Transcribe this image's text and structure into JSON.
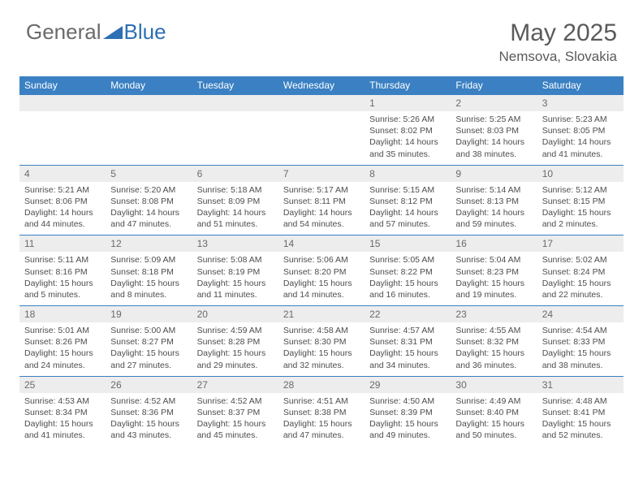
{
  "brand": {
    "part1": "General",
    "part2": "Blue"
  },
  "colors": {
    "header_bg": "#3a80c3",
    "daynum_bg": "#ededed",
    "text": "#4d4d4d",
    "title": "#5a5a5a",
    "logo_gray": "#6a6a6a",
    "logo_blue": "#2d6fb3"
  },
  "title": "May 2025",
  "location": "Nemsova, Slovakia",
  "weekdays": [
    "Sunday",
    "Monday",
    "Tuesday",
    "Wednesday",
    "Thursday",
    "Friday",
    "Saturday"
  ],
  "weeks": [
    [
      null,
      null,
      null,
      null,
      {
        "n": "1",
        "sr": "5:26 AM",
        "ss": "8:02 PM",
        "dl": "14 hours and 35 minutes."
      },
      {
        "n": "2",
        "sr": "5:25 AM",
        "ss": "8:03 PM",
        "dl": "14 hours and 38 minutes."
      },
      {
        "n": "3",
        "sr": "5:23 AM",
        "ss": "8:05 PM",
        "dl": "14 hours and 41 minutes."
      }
    ],
    [
      {
        "n": "4",
        "sr": "5:21 AM",
        "ss": "8:06 PM",
        "dl": "14 hours and 44 minutes."
      },
      {
        "n": "5",
        "sr": "5:20 AM",
        "ss": "8:08 PM",
        "dl": "14 hours and 47 minutes."
      },
      {
        "n": "6",
        "sr": "5:18 AM",
        "ss": "8:09 PM",
        "dl": "14 hours and 51 minutes."
      },
      {
        "n": "7",
        "sr": "5:17 AM",
        "ss": "8:11 PM",
        "dl": "14 hours and 54 minutes."
      },
      {
        "n": "8",
        "sr": "5:15 AM",
        "ss": "8:12 PM",
        "dl": "14 hours and 57 minutes."
      },
      {
        "n": "9",
        "sr": "5:14 AM",
        "ss": "8:13 PM",
        "dl": "14 hours and 59 minutes."
      },
      {
        "n": "10",
        "sr": "5:12 AM",
        "ss": "8:15 PM",
        "dl": "15 hours and 2 minutes."
      }
    ],
    [
      {
        "n": "11",
        "sr": "5:11 AM",
        "ss": "8:16 PM",
        "dl": "15 hours and 5 minutes."
      },
      {
        "n": "12",
        "sr": "5:09 AM",
        "ss": "8:18 PM",
        "dl": "15 hours and 8 minutes."
      },
      {
        "n": "13",
        "sr": "5:08 AM",
        "ss": "8:19 PM",
        "dl": "15 hours and 11 minutes."
      },
      {
        "n": "14",
        "sr": "5:06 AM",
        "ss": "8:20 PM",
        "dl": "15 hours and 14 minutes."
      },
      {
        "n": "15",
        "sr": "5:05 AM",
        "ss": "8:22 PM",
        "dl": "15 hours and 16 minutes."
      },
      {
        "n": "16",
        "sr": "5:04 AM",
        "ss": "8:23 PM",
        "dl": "15 hours and 19 minutes."
      },
      {
        "n": "17",
        "sr": "5:02 AM",
        "ss": "8:24 PM",
        "dl": "15 hours and 22 minutes."
      }
    ],
    [
      {
        "n": "18",
        "sr": "5:01 AM",
        "ss": "8:26 PM",
        "dl": "15 hours and 24 minutes."
      },
      {
        "n": "19",
        "sr": "5:00 AM",
        "ss": "8:27 PM",
        "dl": "15 hours and 27 minutes."
      },
      {
        "n": "20",
        "sr": "4:59 AM",
        "ss": "8:28 PM",
        "dl": "15 hours and 29 minutes."
      },
      {
        "n": "21",
        "sr": "4:58 AM",
        "ss": "8:30 PM",
        "dl": "15 hours and 32 minutes."
      },
      {
        "n": "22",
        "sr": "4:57 AM",
        "ss": "8:31 PM",
        "dl": "15 hours and 34 minutes."
      },
      {
        "n": "23",
        "sr": "4:55 AM",
        "ss": "8:32 PM",
        "dl": "15 hours and 36 minutes."
      },
      {
        "n": "24",
        "sr": "4:54 AM",
        "ss": "8:33 PM",
        "dl": "15 hours and 38 minutes."
      }
    ],
    [
      {
        "n": "25",
        "sr": "4:53 AM",
        "ss": "8:34 PM",
        "dl": "15 hours and 41 minutes."
      },
      {
        "n": "26",
        "sr": "4:52 AM",
        "ss": "8:36 PM",
        "dl": "15 hours and 43 minutes."
      },
      {
        "n": "27",
        "sr": "4:52 AM",
        "ss": "8:37 PM",
        "dl": "15 hours and 45 minutes."
      },
      {
        "n": "28",
        "sr": "4:51 AM",
        "ss": "8:38 PM",
        "dl": "15 hours and 47 minutes."
      },
      {
        "n": "29",
        "sr": "4:50 AM",
        "ss": "8:39 PM",
        "dl": "15 hours and 49 minutes."
      },
      {
        "n": "30",
        "sr": "4:49 AM",
        "ss": "8:40 PM",
        "dl": "15 hours and 50 minutes."
      },
      {
        "n": "31",
        "sr": "4:48 AM",
        "ss": "8:41 PM",
        "dl": "15 hours and 52 minutes."
      }
    ]
  ],
  "labels": {
    "sunrise": "Sunrise: ",
    "sunset": "Sunset: ",
    "daylight": "Daylight: "
  }
}
